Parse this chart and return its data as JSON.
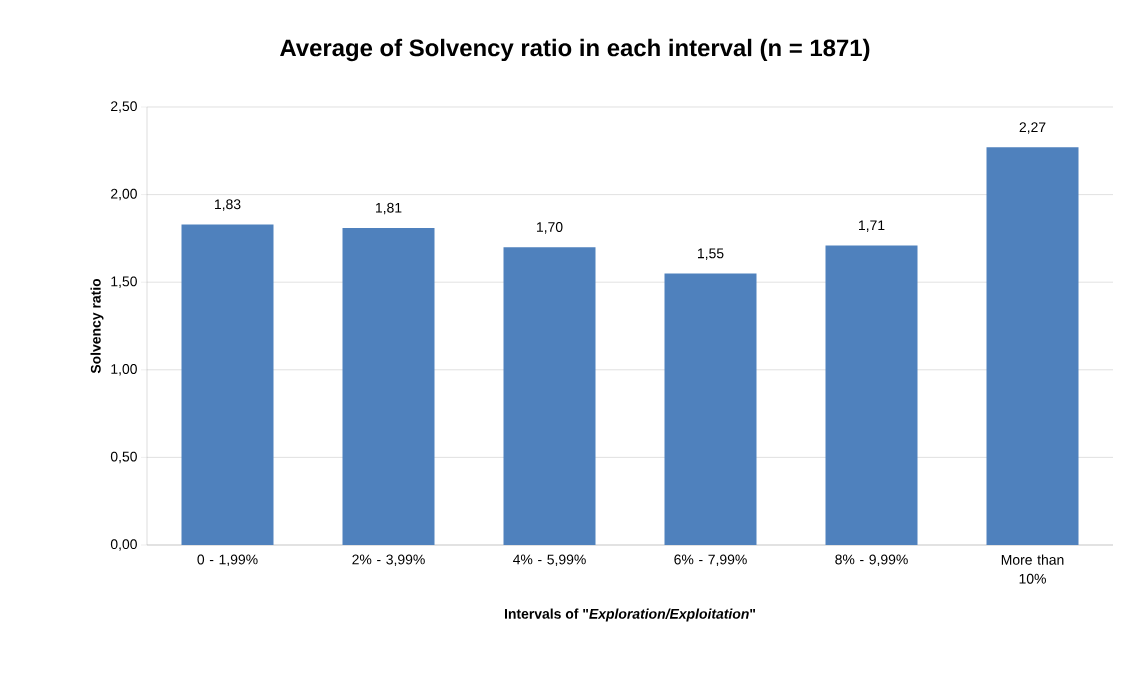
{
  "chart_data": {
    "type": "bar",
    "title": "Average of Solvency ratio in each interval (n = 1871)",
    "xlabel": "Intervals of \"*Exploration/Exploitation*\"",
    "ylabel": "Solvency ratio",
    "categories": [
      "0 - 1,99%",
      "2% - 3,99%",
      "4% - 5,99%",
      "6% - 7,99%",
      "8% - 9,99%",
      "More than 10%"
    ],
    "values": [
      1.83,
      1.81,
      1.7,
      1.55,
      1.71,
      2.27
    ],
    "value_labels": [
      "1,83",
      "1,81",
      "1,70",
      "1,55",
      "1,71",
      "2,27"
    ],
    "color": "#4f81bd",
    "ylim": [
      0,
      2.5
    ],
    "yticks": [
      {
        "value": 0,
        "label": "0,00"
      },
      {
        "value": 0.5,
        "label": "0,50"
      },
      {
        "value": 1,
        "label": "1,00"
      },
      {
        "value": 1.5,
        "label": "1,50"
      },
      {
        "value": 2,
        "label": "2,00"
      },
      {
        "value": 2.5,
        "label": "2,50"
      }
    ],
    "grid": "y"
  }
}
